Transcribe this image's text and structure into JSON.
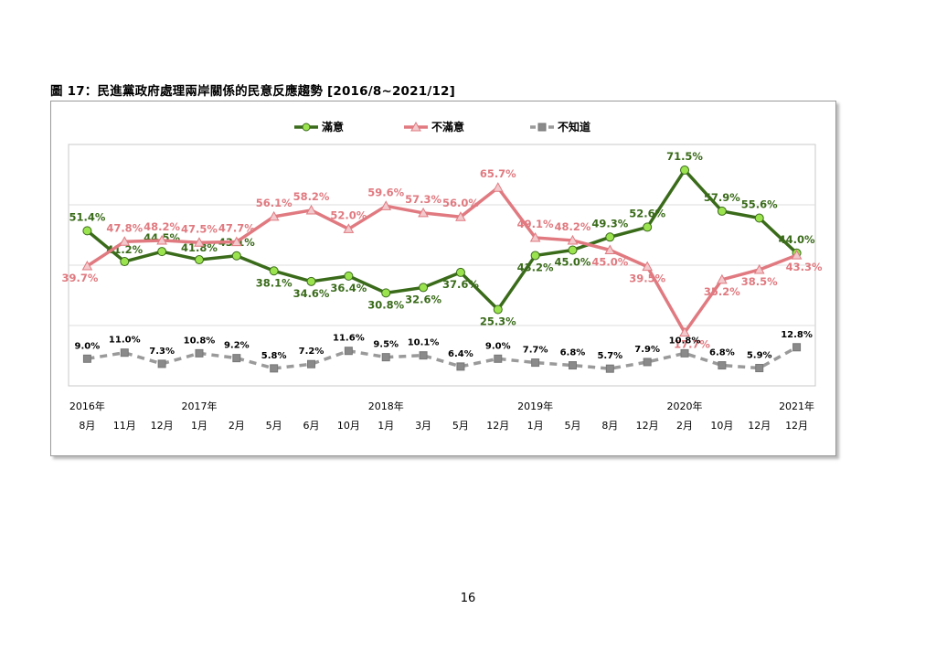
{
  "figure": {
    "title": "圖 17：民進黨政府處理兩岸關係的民意反應趨勢  [2016/8~2021/12]",
    "page_number": "16"
  },
  "chart_data": {
    "type": "line",
    "categories": [
      "8月",
      "11月",
      "12月",
      "1月",
      "2月",
      "5月",
      "6月",
      "10月",
      "1月",
      "3月",
      "5月",
      "12月",
      "1月",
      "5月",
      "8月",
      "12月",
      "2月",
      "10月",
      "12月",
      "12月"
    ],
    "year_labels": [
      {
        "index": 0,
        "label": "2016年"
      },
      {
        "index": 3,
        "label": "2017年"
      },
      {
        "index": 8,
        "label": "2018年"
      },
      {
        "index": 12,
        "label": "2019年"
      },
      {
        "index": 16,
        "label": "2020年"
      },
      {
        "index": 19,
        "label": "2021年"
      }
    ],
    "ylim": [
      0,
      80
    ],
    "grid": true,
    "legend_position": "top",
    "series": [
      {
        "name": "滿意",
        "color": "#3a6b1a",
        "marker_color": "#9be34f",
        "marker": "circle",
        "dashed": false,
        "values": [
          51.4,
          41.2,
          44.5,
          41.8,
          43.1,
          38.1,
          34.6,
          36.4,
          30.8,
          32.6,
          37.6,
          25.3,
          43.2,
          45.0,
          49.3,
          52.6,
          71.5,
          57.9,
          55.6,
          44.0
        ]
      },
      {
        "name": "不滿意",
        "color": "#e07a80",
        "marker_color": "#f2c9cc",
        "marker": "triangle",
        "dashed": false,
        "values": [
          39.7,
          47.8,
          48.2,
          47.5,
          47.7,
          56.1,
          58.2,
          52.0,
          59.6,
          57.3,
          56.0,
          65.7,
          49.1,
          48.2,
          45.0,
          39.5,
          17.7,
          35.2,
          38.5,
          43.3
        ]
      },
      {
        "name": "不知道",
        "color": "#9a9a9a",
        "marker_color": "#8a8a8a",
        "marker": "square",
        "dashed": true,
        "values": [
          9.0,
          11.0,
          7.3,
          10.8,
          9.2,
          5.8,
          7.2,
          11.6,
          9.5,
          10.1,
          6.4,
          9.0,
          7.7,
          6.8,
          5.7,
          7.9,
          10.8,
          6.8,
          5.9,
          12.8
        ]
      }
    ]
  }
}
